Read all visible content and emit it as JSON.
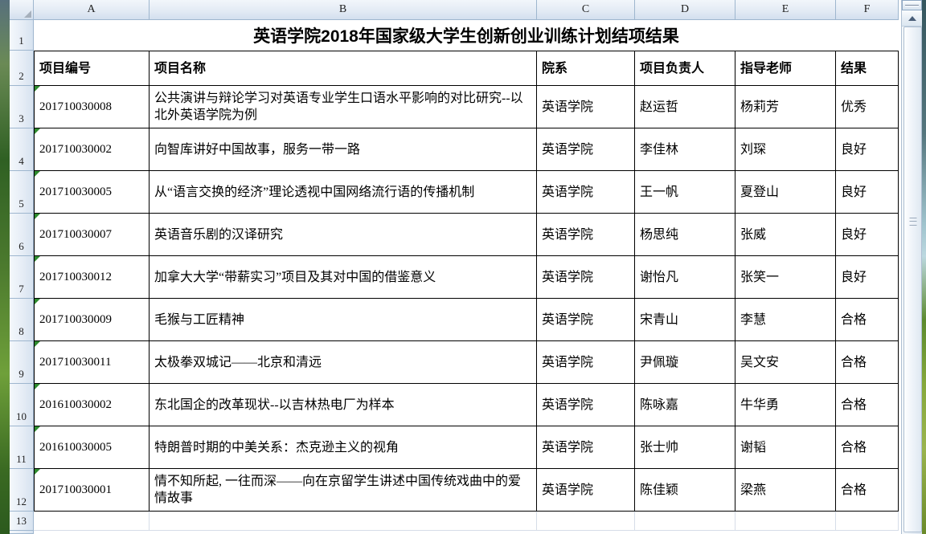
{
  "app": {
    "kind": "spreadsheet-grid"
  },
  "title": "英语学院2018年国家级大学生创新创业训练计划结项结果",
  "column_headers": [
    "A",
    "B",
    "C",
    "D",
    "E",
    "F"
  ],
  "row_numbers": [
    "1",
    "2",
    "3",
    "4",
    "5",
    "6",
    "7",
    "8",
    "9",
    "10",
    "11",
    "12",
    "13"
  ],
  "table": {
    "headers": [
      "项目编号",
      "项目名称",
      "院系",
      "项目负责人",
      "指导老师",
      "结果"
    ],
    "rows": [
      [
        "201710030008",
        "公共演讲与辩论学习对英语专业学生口语水平影响的对比研究--以北外英语学院为例",
        "英语学院",
        "赵运哲",
        "杨莉芳",
        "优秀"
      ],
      [
        "201710030002",
        "向智库讲好中国故事，服务一带一路",
        "英语学院",
        "李佳林",
        "刘琛",
        "良好"
      ],
      [
        "201710030005",
        "从“语言交换的经济”理论透视中国网络流行语的传播机制",
        "英语学院",
        "王一帆",
        "夏登山",
        "良好"
      ],
      [
        "201710030007",
        "英语音乐剧的汉译研究",
        "英语学院",
        "杨思纯",
        "张威",
        "良好"
      ],
      [
        "201710030012",
        "加拿大大学“带薪实习”项目及其对中国的借鉴意义",
        "英语学院",
        "谢怡凡",
        "张笑一",
        "良好"
      ],
      [
        "201710030009",
        "毛猴与工匠精神",
        "英语学院",
        "宋青山",
        "李慧",
        "合格"
      ],
      [
        "201710030011",
        "太极拳双城记——北京和清远",
        "英语学院",
        "尹佩璇",
        "吴文安",
        "合格"
      ],
      [
        "201610030002",
        "东北国企的改革现状--以吉林热电厂为样本",
        "英语学院",
        "陈咏嘉",
        "牛华勇",
        "合格"
      ],
      [
        "201610030005",
        "特朗普时期的中美关系：杰克逊主义的视角",
        "英语学院",
        "张士帅",
        "谢韬",
        "合格"
      ],
      [
        "201710030001",
        "情不知所起, 一往而深——向在京留学生讲述中国传统戏曲中的爱情故事",
        "英语学院",
        "陈佳颖",
        "梁燕",
        "合格"
      ]
    ]
  },
  "icons": {
    "select_all_corner": "corner-triangle",
    "scroll_up": "triangle-up",
    "thumb_grip": "grip-lines",
    "text_as_number_flag": "green-corner-triangle"
  },
  "colors": {
    "table_border": "#000000",
    "gridline": "#d6dde8",
    "header_border": "#9eb6ce",
    "header_fill_top": "#f2f6fb",
    "header_fill_bottom": "#d3dfee",
    "flag_green": "#2e8b2e",
    "desktop_green": "#4c7a2e",
    "cell_text": "#000000"
  }
}
